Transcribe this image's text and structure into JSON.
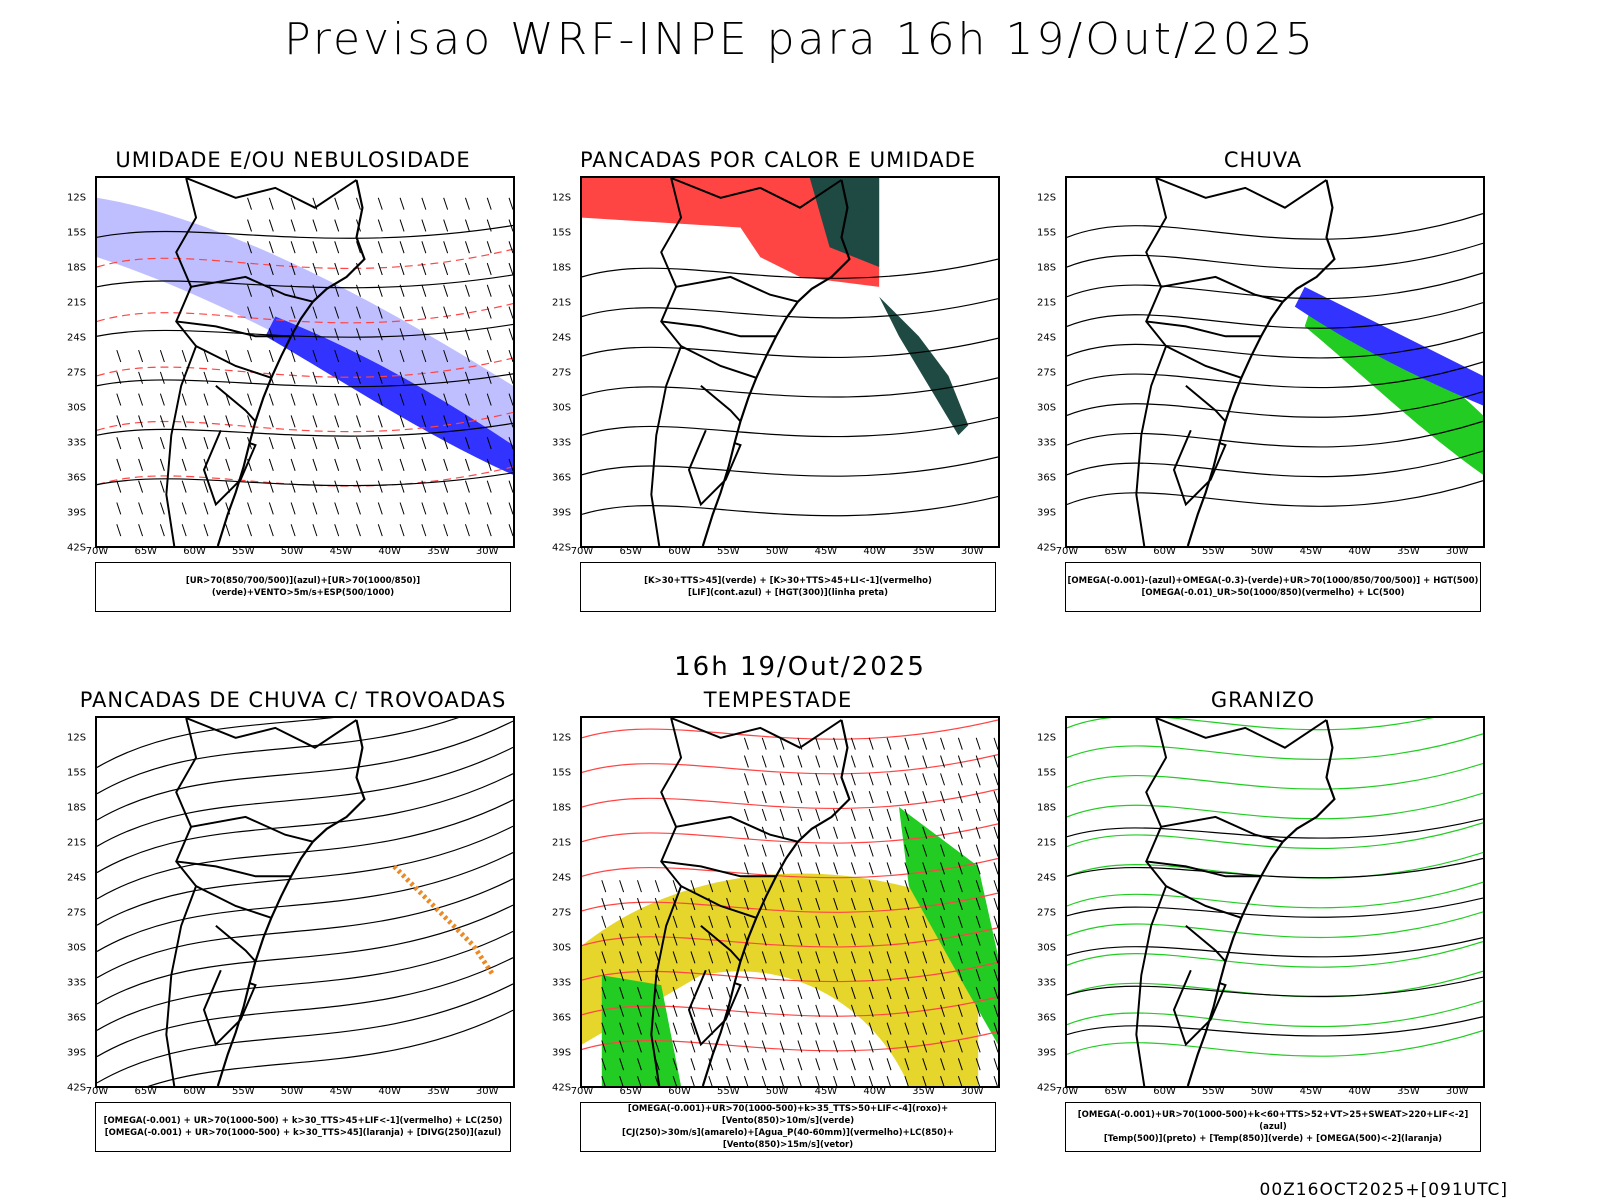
{
  "header": {
    "title": "Previsao WRF-INPE  para 16h 19/Out/2025"
  },
  "subtitle": "16h 19/Out/2025",
  "footer": "00Z16OCT2025+[091UTC]",
  "axes": {
    "lat_labels": [
      "12S",
      "15S",
      "18S",
      "21S",
      "24S",
      "27S",
      "30S",
      "33S",
      "36S",
      "39S",
      "42S"
    ],
    "lon_labels": [
      "70W",
      "65W",
      "60W",
      "55W",
      "50W",
      "45W",
      "40W",
      "35W",
      "30W"
    ]
  },
  "colors": {
    "blue": "#3333ff",
    "light_blue": "#b8b8ff",
    "green": "#22cc22",
    "red": "#ff4444",
    "dark_teal": "#1f4a44",
    "yellow": "#e6d52a",
    "orange": "#ee8822"
  },
  "panels": [
    {
      "title": "UMIDADE E/OU NEBULOSIDADE",
      "legend": [
        "[UR>70(850/700/500)](azul)+[UR>70(1000/850)](verde)+VENTO>5m/s+ESP(500/1000)"
      ]
    },
    {
      "title": "PANCADAS POR CALOR E UMIDADE",
      "legend": [
        "[K>30+TTS>45](verde) + [K>30+TTS>45+LI<-1](vermelho)",
        "[LIF](cont.azul) + [HGT(300)](linha preta)"
      ]
    },
    {
      "title": "CHUVA",
      "legend": [
        "[OMEGA(-0.001)-(azul)+OMEGA(-0.3)-(verde)+UR>70(1000/850/700/500)] + HGT(500)",
        "[OMEGA(-0.01)_UR>50(1000/850)(vermelho) + LC(500)"
      ]
    },
    {
      "title": "PANCADAS DE CHUVA C/ TROVOADAS",
      "legend": [
        "[OMEGA(-0.001) + UR>70(1000-500) + k>30_TTS>45+LIF<-1](vermelho) + LC(250)",
        "[OMEGA(-0.001) + UR>70(1000-500) + k>30_TTS>45](laranja) + [DIVG(250)](azul)"
      ]
    },
    {
      "title": "TEMPESTADE",
      "legend": [
        "[OMEGA(-0.001)+UR>70(1000-500)+k>35_TTS>50+LIF<-4](roxo)+[Vento(850)>10m/s](verde)",
        "[CJ(250)>30m/s](amarelo)+[Agua_P(40-60mm)](vermelho)+LC(850)+[Vento(850)>15m/s](vetor)"
      ]
    },
    {
      "title": "GRANIZO",
      "legend": [
        "[OMEGA(-0.001)+UR>70(1000-500)+k<60+TTS>52+VT>25+SWEAT>220+LIF<-2](azul)",
        "[Temp(500)](preto) + [Temp(850)](verde) + [OMEGA(500)<-2](laranja)"
      ]
    }
  ]
}
